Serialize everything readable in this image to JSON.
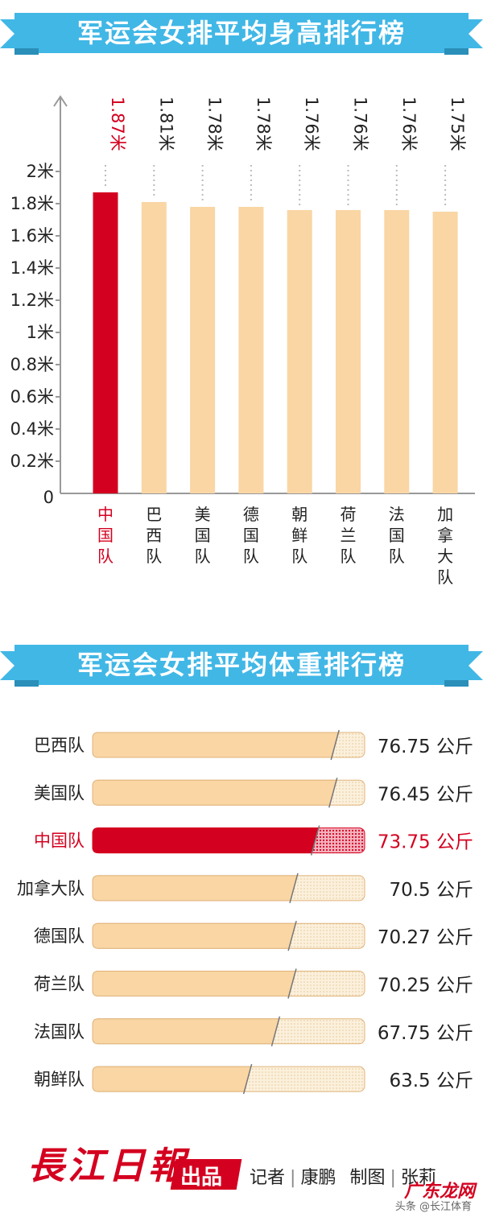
{
  "height_title": "军运会女排平均身高排行榜",
  "weight_title": "军运会女排平均体重排行榜",
  "colors": {
    "highlight": "#d4001f",
    "bar": "#f9d6a4",
    "banner": "#41b7e6"
  },
  "chart_data": [
    {
      "type": "bar",
      "title": "军运会女排平均身高排行榜",
      "categories": [
        "中国队",
        "巴西队",
        "美国队",
        "德国队",
        "朝鲜队",
        "荷兰队",
        "法国队",
        "加拿大队"
      ],
      "values": [
        1.87,
        1.81,
        1.78,
        1.78,
        1.76,
        1.76,
        1.76,
        1.75
      ],
      "value_labels": [
        "1.87米",
        "1.81米",
        "1.78米",
        "1.78米",
        "1.76米",
        "1.76米",
        "1.76米",
        "1.75米"
      ],
      "highlight": "中国队",
      "ylim": [
        0,
        2
      ],
      "y_ticks": [
        "0",
        "0.2米",
        "0.4米",
        "0.6米",
        "0.8米",
        "1米",
        "1.2米",
        "1.4米",
        "1.6米",
        "1.8米",
        "2米"
      ],
      "xlabel": "",
      "ylabel": "",
      "grid": false
    },
    {
      "type": "bar",
      "orientation": "horizontal",
      "title": "军运会女排平均体重排行榜",
      "categories": [
        "巴西队",
        "美国队",
        "中国队",
        "加拿大队",
        "德国队",
        "荷兰队",
        "法国队",
        "朝鲜队"
      ],
      "values": [
        76.75,
        76.45,
        73.75,
        70.5,
        70.27,
        70.25,
        67.75,
        63.5
      ],
      "value_labels": [
        "76.75 公斤",
        "76.45 公斤",
        "73.75 公斤",
        "70.5 公斤",
        "70.27 公斤",
        "70.25 公斤",
        "67.75 公斤",
        "63.5 公斤"
      ],
      "highlight": "中国队",
      "xlabel": "",
      "ylabel": "",
      "grid": false
    }
  ],
  "footer": {
    "logo": "長江日報",
    "publish": "出品",
    "reporter_label": "记者",
    "reporter": "康鹏",
    "graphic_label": "制图",
    "graphic": "张莉",
    "watermark": "广东龙网",
    "watermark_sub": "头条 @长江体育"
  }
}
